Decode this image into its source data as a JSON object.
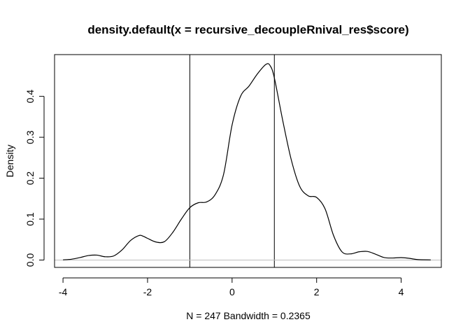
{
  "chart_data": {
    "type": "line",
    "title": "density.default(x = recursive_decoupleRnival_res$score)",
    "xlabel": "N = 247   Bandwidth = 0.2365",
    "ylabel": "Density",
    "xlim": [
      -4.2,
      4.95
    ],
    "ylim": [
      -0.018,
      0.502
    ],
    "x_ticks": [
      -4,
      -2,
      0,
      2,
      4
    ],
    "y_ticks": [
      0.0,
      0.1,
      0.2,
      0.3,
      0.4
    ],
    "x_tick_labels": [
      "-4",
      "-2",
      "0",
      "2",
      "4"
    ],
    "y_tick_labels": [
      "0.0",
      "0.1",
      "0.2",
      "0.3",
      "0.4"
    ],
    "grid": false,
    "reference_lines": [
      {
        "orientation": "vertical",
        "x": -1
      },
      {
        "orientation": "vertical",
        "x": 1
      },
      {
        "orientation": "horizontal",
        "y": 0,
        "color": "#bebebe"
      }
    ],
    "series": [
      {
        "color": "#000000",
        "x": [
          -4.0,
          -3.8,
          -3.6,
          -3.4,
          -3.2,
          -3.0,
          -2.8,
          -2.6,
          -2.4,
          -2.2,
          -2.1,
          -2.0,
          -1.8,
          -1.6,
          -1.4,
          -1.2,
          -1.0,
          -0.8,
          -0.6,
          -0.4,
          -0.2,
          0.0,
          0.2,
          0.4,
          0.6,
          0.8,
          0.9,
          1.0,
          1.2,
          1.4,
          1.6,
          1.8,
          2.0,
          2.2,
          2.4,
          2.6,
          2.8,
          3.0,
          3.2,
          3.4,
          3.6,
          3.8,
          4.0,
          4.2,
          4.4,
          4.7
        ],
        "y": [
          0.0005,
          0.002,
          0.006,
          0.011,
          0.012,
          0.008,
          0.01,
          0.025,
          0.048,
          0.06,
          0.058,
          0.053,
          0.044,
          0.045,
          0.068,
          0.1,
          0.128,
          0.14,
          0.142,
          0.16,
          0.21,
          0.33,
          0.4,
          0.425,
          0.455,
          0.478,
          0.475,
          0.445,
          0.34,
          0.245,
          0.18,
          0.157,
          0.153,
          0.125,
          0.06,
          0.02,
          0.015,
          0.02,
          0.021,
          0.014,
          0.006,
          0.005,
          0.006,
          0.004,
          0.001,
          0.0003
        ]
      }
    ]
  }
}
